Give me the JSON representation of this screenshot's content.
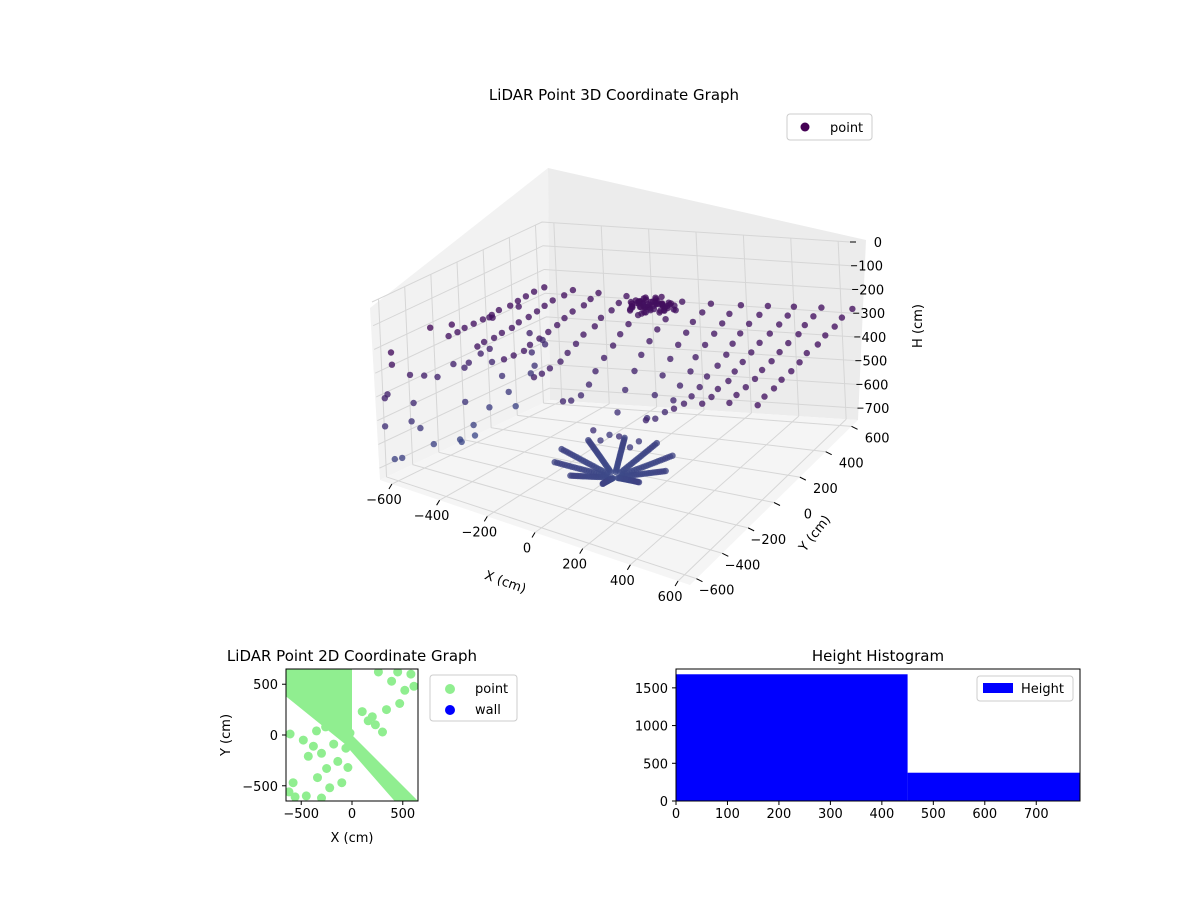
{
  "chart_data": [
    {
      "type": "scatter",
      "title": "LiDAR Point 3D Coordinate Graph",
      "xlabel": "X (cm)",
      "ylabel": "Y (cm)",
      "zlabel": "H (cm)",
      "xlim": [
        -650,
        650
      ],
      "ylim": [
        -650,
        650
      ],
      "zlim": [
        750,
        0
      ],
      "x_ticks": [
        "−600",
        "−400",
        "−200",
        "0",
        "200",
        "400",
        "600"
      ],
      "y_ticks": [
        "−600",
        "−400",
        "−200",
        "0",
        "200",
        "400",
        "600"
      ],
      "z_ticks": [
        "0",
        "100",
        "200",
        "300",
        "400",
        "500",
        "600",
        "700"
      ],
      "legend": [
        "point"
      ],
      "legend_position": "top-right",
      "grid": true,
      "colormap": "viridis",
      "marker_color": "#440154",
      "series": [
        {
          "name": "point",
          "description_free": true,
          "ceiling_h": 260,
          "cluster": {
            "x": -120,
            "y": 520,
            "h": 270
          }
        }
      ]
    },
    {
      "type": "scatter",
      "title": "LiDAR Point 2D Coordinate Graph",
      "xlabel": "X (cm)",
      "ylabel": "Y (cm)",
      "xlim": [
        -650,
        650
      ],
      "ylim": [
        -650,
        650
      ],
      "x_ticks": [
        "−500",
        "0",
        "500"
      ],
      "y_ticks": [
        "500",
        "0",
        "−500"
      ],
      "legend": [
        "point",
        "wall"
      ],
      "legend_position": "outside-right",
      "colors": {
        "point": "#90ee90",
        "wall": "#0000ff"
      },
      "scattered_points": [
        [
          -600,
          620
        ],
        [
          -520,
          540
        ],
        [
          -610,
          10
        ],
        [
          -580,
          -470
        ],
        [
          -620,
          -560
        ],
        [
          -480,
          -50
        ],
        [
          -430,
          -210
        ],
        [
          -380,
          -110
        ],
        [
          -340,
          -420
        ],
        [
          -300,
          -180
        ],
        [
          -250,
          -330
        ],
        [
          -220,
          -520
        ],
        [
          -180,
          -90
        ],
        [
          -140,
          -260
        ],
        [
          -100,
          -470
        ],
        [
          -120,
          80
        ],
        [
          -60,
          -130
        ],
        [
          -40,
          -320
        ],
        [
          260,
          620
        ],
        [
          390,
          530
        ],
        [
          450,
          620
        ],
        [
          580,
          600
        ],
        [
          610,
          480
        ],
        [
          520,
          440
        ],
        [
          470,
          310
        ],
        [
          340,
          250
        ],
        [
          160,
          140
        ],
        [
          230,
          100
        ],
        [
          300,
          30
        ],
        [
          -560,
          -610
        ],
        [
          -450,
          -600
        ],
        [
          -300,
          -620
        ],
        [
          100,
          230
        ],
        [
          200,
          180
        ],
        [
          -20,
          20
        ],
        [
          -260,
          80
        ],
        [
          -350,
          40
        ]
      ]
    },
    {
      "type": "bar",
      "title": "Height Histogram",
      "xlabel": "",
      "ylabel": "",
      "xlim": [
        0,
        785
      ],
      "ylim": [
        0,
        1750
      ],
      "x_ticks": [
        "0",
        "100",
        "200",
        "300",
        "400",
        "500",
        "600",
        "700"
      ],
      "y_ticks": [
        "0",
        "500",
        "1000",
        "1500"
      ],
      "legend": [
        "Height"
      ],
      "legend_position": "top-right",
      "bar_color": "#0000ff",
      "bins": [
        {
          "from": 0,
          "to": 450,
          "count": 1680
        },
        {
          "from": 450,
          "to": 785,
          "count": 375
        }
      ]
    }
  ]
}
